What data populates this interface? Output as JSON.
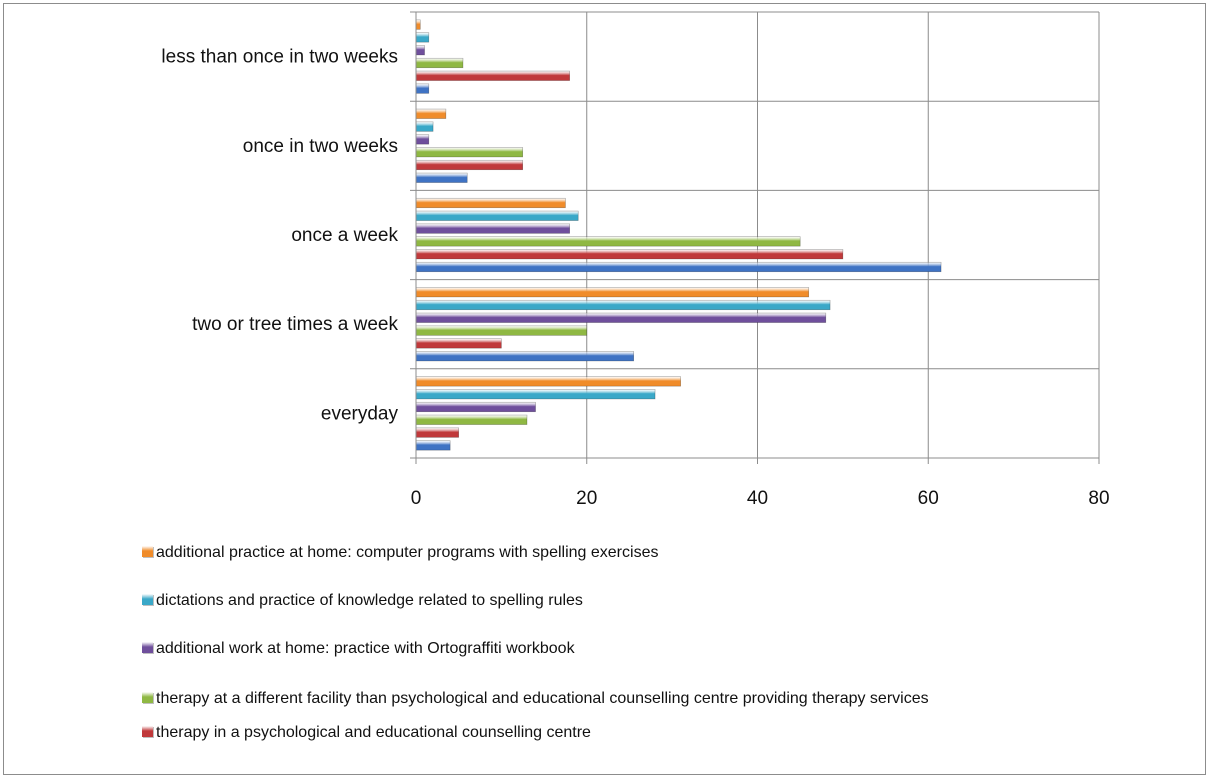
{
  "chart_data": {
    "type": "bar",
    "orientation": "horizontal",
    "categories": [
      "everyday",
      "two or tree times a week",
      "once a week",
      "once in two weeks",
      "less than once in two weeks"
    ],
    "series": [
      {
        "name": "therapy in a psychological and educational counselling centre",
        "color": "#c0393b",
        "values": [
          5,
          10,
          50,
          12.5,
          18
        ]
      },
      {
        "name": "therapy at a different facility than psychological and educational counselling centre providing therapy services",
        "color": "#8fb843",
        "values": [
          13,
          20,
          45,
          12.5,
          5.5
        ]
      },
      {
        "name": "additional work at home: practice with Ortograffiti workbook",
        "color": "#6f4f9c",
        "values": [
          14,
          48,
          18,
          1.5,
          1
        ]
      },
      {
        "name": "dictations and practice of knowledge related to spelling rules",
        "color": "#3aa8c8",
        "values": [
          28,
          48.5,
          19,
          2,
          1.5
        ]
      },
      {
        "name": "additional practice at home: computer programs with spelling exercises",
        "color": "#f08c2a",
        "values": [
          31,
          46,
          17.5,
          3.5,
          0.5
        ]
      }
    ],
    "unnamed_series": {
      "color": "#3f73c4",
      "values": [
        4,
        25.5,
        61.5,
        6,
        1.5
      ]
    },
    "xlim": [
      0,
      80
    ],
    "xticks": [
      "0",
      "20",
      "40",
      "60",
      "80"
    ],
    "grid": true,
    "legend_position": "bottom",
    "legend_order": [
      4,
      3,
      2,
      1,
      0
    ]
  }
}
